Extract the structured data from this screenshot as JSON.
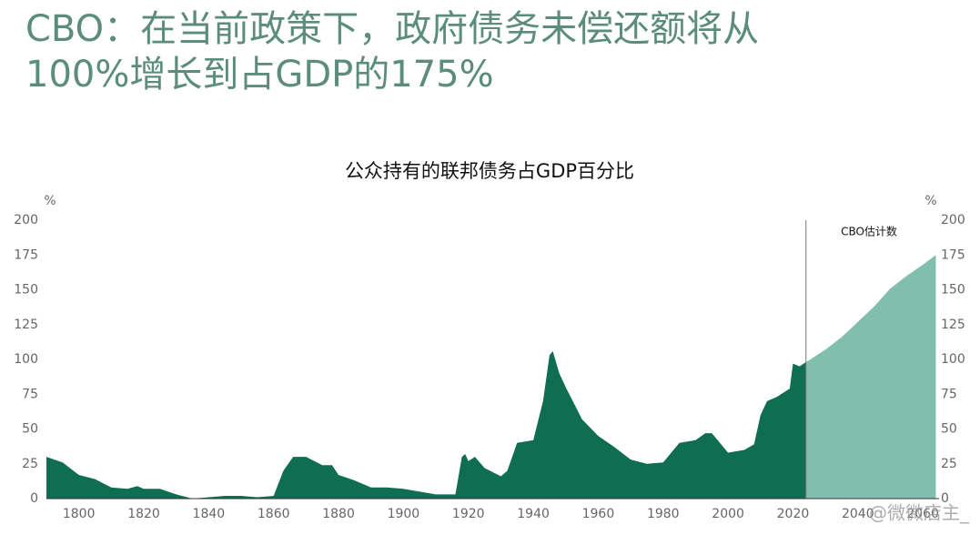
{
  "heading": [
    "CBO：在当前政策下，政府债务未偿还额将从",
    "100%增长到占GDP的175%"
  ],
  "chart_data": {
    "type": "area",
    "title": "公众持有的联邦债务占GDP百分比",
    "y_unit": "%",
    "y2_unit": "%",
    "xlim": [
      1790,
      2065
    ],
    "xticks": [
      1800,
      1820,
      1840,
      1860,
      1880,
      1900,
      1920,
      1940,
      1960,
      1980,
      2000,
      2020,
      2040,
      2060
    ],
    "ylim": [
      0,
      200
    ],
    "yticks": [
      0,
      25,
      50,
      75,
      100,
      125,
      150,
      175,
      200
    ],
    "y2lim": [
      0,
      200
    ],
    "y2ticks": [
      0,
      25,
      50,
      75,
      100,
      125,
      150,
      175,
      200
    ],
    "series": [
      {
        "color": "#0f6e52",
        "x": [
          1790,
          1795,
          1800,
          1805,
          1810,
          1815,
          1818,
          1820,
          1825,
          1830,
          1835,
          1840,
          1845,
          1850,
          1855,
          1860,
          1863,
          1866,
          1870,
          1875,
          1878,
          1880,
          1885,
          1890,
          1895,
          1900,
          1905,
          1910,
          1916,
          1918,
          1919,
          1920,
          1922,
          1925,
          1930,
          1932,
          1935,
          1940,
          1943,
          1945,
          1946,
          1948,
          1950,
          1955,
          1960,
          1965,
          1970,
          1975,
          1980,
          1985,
          1990,
          1993,
          1995,
          2000,
          2005,
          2008,
          2010,
          2012,
          2015,
          2019,
          2020,
          2022,
          2024
        ],
        "values": [
          30,
          26,
          17,
          14,
          8,
          7,
          9,
          7,
          7,
          3,
          0,
          1,
          2,
          2,
          1,
          2,
          20,
          30,
          30,
          24,
          24,
          17,
          13,
          8,
          8,
          7,
          5,
          3,
          3,
          30,
          32,
          27,
          30,
          22,
          16,
          20,
          40,
          42,
          70,
          103,
          106,
          90,
          80,
          57,
          45,
          37,
          28,
          25,
          26,
          40,
          42,
          47,
          47,
          33,
          35,
          39,
          60,
          70,
          73,
          79,
          97,
          95,
          98
        ]
      },
      {
        "color": "#80bfae",
        "axis": "y2",
        "x": [
          2024,
          2030,
          2035,
          2040,
          2045,
          2050,
          2055,
          2060,
          2064
        ],
        "values": [
          98,
          107,
          116,
          127,
          138,
          151,
          160,
          168,
          175
        ]
      }
    ],
    "annotation": {
      "text": "CBO估计数",
      "x": 2024
    }
  },
  "watermark": "@微微店主_"
}
